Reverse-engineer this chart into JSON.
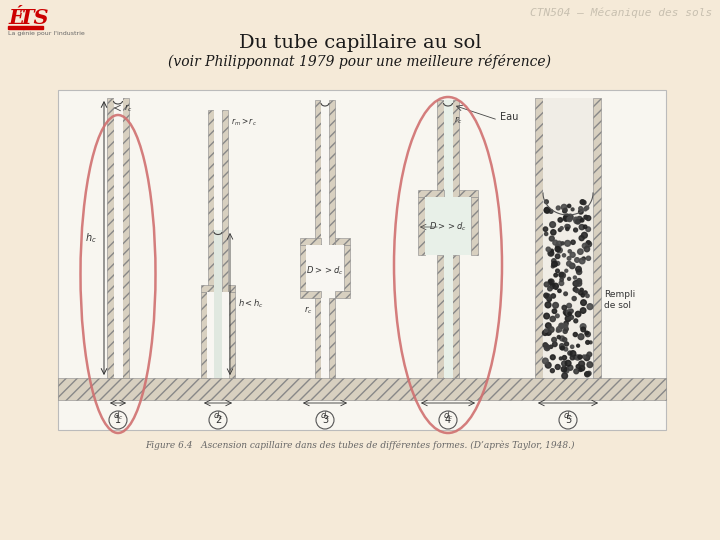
{
  "bg_color": "#f5ead8",
  "title_main": "Du tube capillaire au sol",
  "title_sub": "(voir Philipponnat 1979 pour une meilleure référence)",
  "header_text": "CTN504 – Mécanique des sols",
  "figure_caption": "Figure 6.4   Ascension capillaire dans des tubes de différentes formes. (D’après Taylor, 1948.)",
  "diagram_bg": "#f8f6f0",
  "ellipse_color": "#d07070",
  "hatch_bg": "#d8d0c0",
  "inner_bg": "#f8f6f2",
  "ground_bg": "#c8bca8",
  "labels_nums": [
    "1",
    "2",
    "3",
    "4",
    "5"
  ]
}
